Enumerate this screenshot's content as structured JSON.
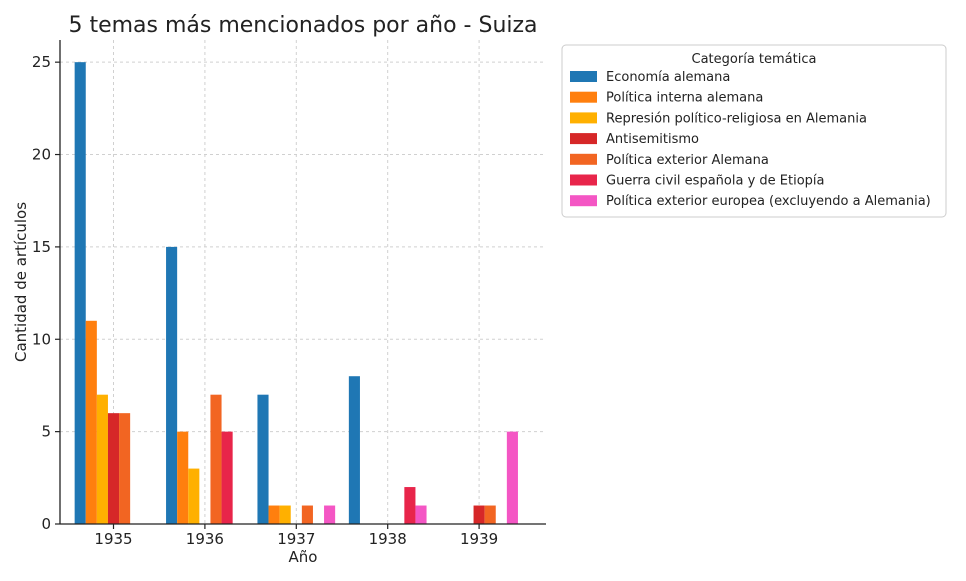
{
  "chart_data": {
    "type": "bar",
    "title": "5 temas más mencionados por año - Suiza",
    "xlabel": "Año",
    "ylabel": "Cantidad de artículos",
    "categories": [
      "1935",
      "1936",
      "1937",
      "1938",
      "1939"
    ],
    "ylim": [
      0,
      26.2
    ],
    "yticks": [
      0,
      5,
      10,
      15,
      20,
      25
    ],
    "grid": true,
    "legend": {
      "title": "Categoría temática",
      "position": "outside-right"
    },
    "series": [
      {
        "name": "Economía alemana",
        "color": "#1f77b4",
        "values": [
          25,
          15,
          7,
          8,
          0
        ]
      },
      {
        "name": "Política interna alemana",
        "color": "#ff7f0e",
        "values": [
          11,
          5,
          1,
          0,
          0
        ]
      },
      {
        "name": "Represión político-religiosa en Alemania",
        "color": "#ffb000",
        "values": [
          7,
          3,
          1,
          0,
          0
        ]
      },
      {
        "name": "Antisemitismo",
        "color": "#d62728",
        "values": [
          6,
          0,
          0,
          0,
          1
        ]
      },
      {
        "name": "Política exterior Alemana",
        "color": "#f26522",
        "values": [
          6,
          7,
          1,
          0,
          1
        ]
      },
      {
        "name": "Guerra civil española y de Etiopía",
        "color": "#e8254a",
        "values": [
          0,
          5,
          0,
          2,
          0
        ]
      },
      {
        "name": "Política exterior europea (excluyendo a Alemania)",
        "color": "#f456c4",
        "values": [
          0,
          0,
          1,
          1,
          5
        ]
      }
    ]
  }
}
